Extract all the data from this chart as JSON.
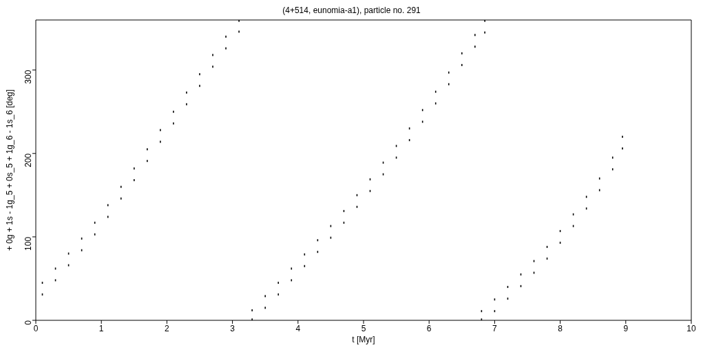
{
  "chart_data": {
    "type": "scatter",
    "title": "(4+514, eunomia-a1), particle no. 291",
    "xlabel": "t [Myr]",
    "ylabel": "+ 0g + 1s - 1g_5 + 0s_5 + 1g_6 - 1s_6 [deg]",
    "xlim": [
      0,
      10
    ],
    "ylim": [
      0,
      360
    ],
    "xticks": [
      0,
      1,
      2,
      3,
      4,
      5,
      6,
      7,
      8,
      9,
      10
    ],
    "yticks": [
      0,
      100,
      200,
      300
    ],
    "grid": false,
    "marker": "square",
    "series": [
      {
        "color": "#000000",
        "x": [
          0.1,
          0.1,
          0.3,
          0.3,
          0.5,
          0.5,
          0.7,
          0.7,
          0.9,
          0.9,
          1.1,
          1.1,
          1.3,
          1.3,
          1.5,
          1.5,
          1.7,
          1.7,
          1.9,
          1.9,
          2.1,
          2.1,
          2.3,
          2.3,
          2.5,
          2.5,
          2.7,
          2.7,
          2.9,
          2.9,
          3.1,
          3.1,
          3.3,
          3.3,
          3.5,
          3.5,
          3.7,
          3.7,
          3.9,
          3.9,
          4.1,
          4.1,
          4.3,
          4.3,
          4.5,
          4.5,
          4.7,
          4.7,
          4.9,
          4.9,
          5.1,
          5.1,
          5.3,
          5.3,
          5.5,
          5.5,
          5.7,
          5.7,
          5.9,
          5.9,
          6.1,
          6.1,
          6.3,
          6.3,
          6.5,
          6.5,
          6.7,
          6.7,
          6.85,
          6.85,
          6.8,
          6.8,
          7.0,
          7.0,
          7.2,
          7.2,
          7.4,
          7.4,
          7.6,
          7.6,
          7.8,
          7.8,
          8.0,
          8.0,
          8.2,
          8.2,
          8.4,
          8.4,
          8.6,
          8.6,
          8.8,
          8.8,
          8.95,
          8.95
        ],
        "values": [
          31,
          45,
          48,
          62,
          66,
          80,
          84,
          98,
          103,
          117,
          124,
          138,
          146,
          160,
          168,
          182,
          191,
          205,
          214,
          228,
          236,
          250,
          259,
          273,
          281,
          295,
          304,
          318,
          326,
          340,
          346,
          359,
          1,
          12,
          15,
          29,
          31,
          45,
          48,
          62,
          65,
          79,
          82,
          96,
          99,
          113,
          117,
          131,
          136,
          150,
          155,
          169,
          175,
          189,
          195,
          209,
          216,
          230,
          238,
          252,
          260,
          274,
          283,
          297,
          306,
          320,
          328,
          342,
          345,
          359,
          1,
          11,
          11,
          25,
          26,
          40,
          41,
          55,
          57,
          71,
          74,
          88,
          93,
          107,
          113,
          127,
          134,
          148,
          156,
          170,
          181,
          195,
          206,
          220
        ]
      }
    ]
  }
}
